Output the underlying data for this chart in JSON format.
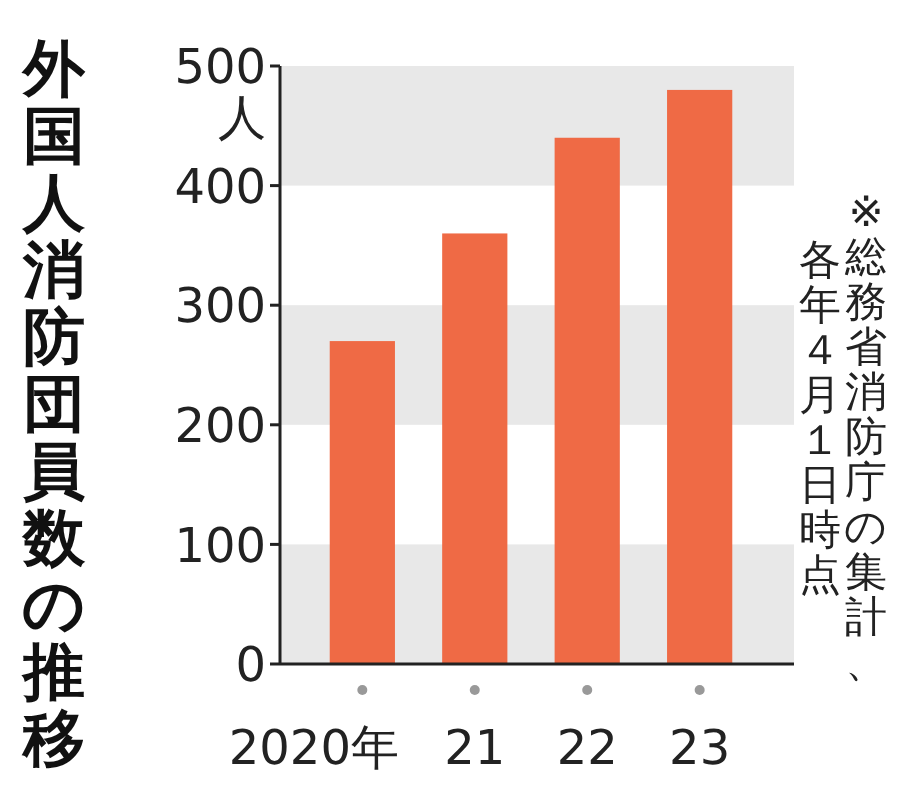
{
  "chart_data": {
    "type": "bar",
    "title": "外国人消防団員数の推移",
    "ylabel": "人",
    "categories": [
      "2020年",
      "21",
      "22",
      "23"
    ],
    "values": [
      270,
      360,
      440,
      480
    ],
    "color": "#ef6a45",
    "ylim": [
      0,
      500
    ],
    "yticks": [
      0,
      100,
      200,
      300,
      400,
      500
    ],
    "bands": [
      {
        "axis": "y",
        "from": 0,
        "to": 100,
        "color": "#e8e8e8"
      },
      {
        "axis": "y",
        "from": 200,
        "to": 300,
        "color": "#e8e8e8"
      },
      {
        "axis": "y",
        "from": 400,
        "to": 500,
        "color": "#e8e8e8"
      }
    ],
    "annotations": [
      "※総務省消防庁の集計、",
      "各年４月１日時点"
    ]
  }
}
